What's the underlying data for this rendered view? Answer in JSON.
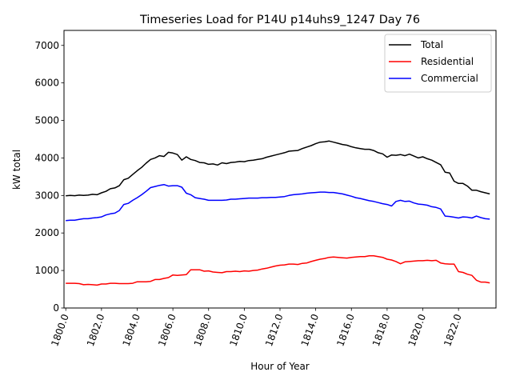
{
  "chart_data": {
    "type": "line",
    "title": "Timeseries Load for P14U p14uhs9_1247  Day 76",
    "xlabel": "Hour of Year",
    "ylabel": "kW total",
    "xlim": [
      1799.9,
      1824.1
    ],
    "ylim": [
      0,
      7400
    ],
    "xticks": [
      1800,
      1802,
      1804,
      1806,
      1808,
      1810,
      1812,
      1814,
      1816,
      1818,
      1820,
      1822
    ],
    "xtick_labels": [
      "1800.0",
      "1802.0",
      "1804.0",
      "1806.0",
      "1808.0",
      "1810.0",
      "1812.0",
      "1814.0",
      "1816.0",
      "1818.0",
      "1820.0",
      "1822.0"
    ],
    "yticks": [
      0,
      1000,
      2000,
      3000,
      4000,
      5000,
      6000,
      7000
    ],
    "ytick_labels": [
      "0",
      "1000",
      "2000",
      "3000",
      "4000",
      "5000",
      "6000",
      "7000"
    ],
    "grid": false,
    "legend_position": "top-right",
    "x": [
      1800.0,
      1800.25,
      1800.5,
      1800.75,
      1801.0,
      1801.25,
      1801.5,
      1801.75,
      1802.0,
      1802.25,
      1802.5,
      1802.75,
      1803.0,
      1803.25,
      1803.5,
      1803.75,
      1804.0,
      1804.25,
      1804.5,
      1804.75,
      1805.0,
      1805.25,
      1805.5,
      1805.75,
      1806.0,
      1806.25,
      1806.5,
      1806.75,
      1807.0,
      1807.25,
      1807.5,
      1807.75,
      1808.0,
      1808.25,
      1808.5,
      1808.75,
      1809.0,
      1809.25,
      1809.5,
      1809.75,
      1810.0,
      1810.25,
      1810.5,
      1810.75,
      1811.0,
      1811.25,
      1811.5,
      1811.75,
      1812.0,
      1812.25,
      1812.5,
      1812.75,
      1813.0,
      1813.25,
      1813.5,
      1813.75,
      1814.0,
      1814.25,
      1814.5,
      1814.75,
      1815.0,
      1815.25,
      1815.5,
      1815.75,
      1816.0,
      1816.25,
      1816.5,
      1816.75,
      1817.0,
      1817.25,
      1817.5,
      1817.75,
      1818.0,
      1818.25,
      1818.5,
      1818.75,
      1819.0,
      1819.25,
      1819.5,
      1819.75,
      1820.0,
      1820.25,
      1820.5,
      1820.75,
      1821.0,
      1821.25,
      1821.5,
      1821.75,
      1822.0,
      1822.25,
      1822.5,
      1822.75,
      1823.0,
      1823.25,
      1823.5,
      1823.75
    ],
    "series": [
      {
        "name": "Total",
        "color": "#000000",
        "values": [
          2990,
          3000,
          2995,
          3010,
          3000,
          3010,
          3030,
          3020,
          3070,
          3110,
          3180,
          3200,
          3260,
          3420,
          3460,
          3560,
          3660,
          3750,
          3860,
          3960,
          4000,
          4060,
          4040,
          4150,
          4130,
          4090,
          3940,
          4030,
          3960,
          3930,
          3880,
          3870,
          3830,
          3840,
          3810,
          3870,
          3850,
          3880,
          3890,
          3910,
          3900,
          3930,
          3940,
          3960,
          3980,
          4020,
          4050,
          4080,
          4110,
          4140,
          4180,
          4190,
          4200,
          4250,
          4290,
          4330,
          4380,
          4420,
          4430,
          4450,
          4420,
          4390,
          4360,
          4340,
          4300,
          4270,
          4250,
          4230,
          4230,
          4200,
          4140,
          4110,
          4020,
          4080,
          4070,
          4090,
          4060,
          4100,
          4050,
          4000,
          4030,
          3980,
          3940,
          3880,
          3820,
          3620,
          3600,
          3380,
          3320,
          3320,
          3250,
          3140,
          3140,
          3100,
          3070,
          3040
        ]
      },
      {
        "name": "Residential",
        "color": "#ff0000",
        "values": [
          660,
          660,
          660,
          650,
          620,
          630,
          620,
          610,
          640,
          640,
          660,
          660,
          650,
          650,
          650,
          660,
          700,
          700,
          700,
          710,
          760,
          760,
          790,
          810,
          880,
          870,
          880,
          890,
          1020,
          1020,
          1020,
          980,
          990,
          960,
          950,
          940,
          970,
          970,
          980,
          970,
          990,
          980,
          1000,
          1010,
          1040,
          1060,
          1090,
          1120,
          1140,
          1150,
          1170,
          1170,
          1160,
          1190,
          1200,
          1240,
          1270,
          1300,
          1320,
          1350,
          1360,
          1350,
          1340,
          1330,
          1350,
          1360,
          1370,
          1370,
          1390,
          1390,
          1370,
          1350,
          1300,
          1280,
          1240,
          1180,
          1230,
          1240,
          1250,
          1260,
          1260,
          1270,
          1260,
          1270,
          1200,
          1180,
          1170,
          1170,
          970,
          950,
          900,
          870,
          740,
          690,
          690,
          670
        ]
      },
      {
        "name": "Commercial",
        "color": "#0000ff",
        "values": [
          2330,
          2340,
          2340,
          2360,
          2380,
          2380,
          2400,
          2410,
          2430,
          2480,
          2510,
          2530,
          2600,
          2760,
          2790,
          2870,
          2940,
          3020,
          3110,
          3210,
          3240,
          3270,
          3290,
          3250,
          3260,
          3260,
          3220,
          3060,
          3020,
          2940,
          2920,
          2900,
          2870,
          2870,
          2870,
          2870,
          2880,
          2900,
          2900,
          2910,
          2920,
          2930,
          2930,
          2930,
          2940,
          2940,
          2950,
          2950,
          2960,
          2970,
          3000,
          3020,
          3030,
          3040,
          3060,
          3070,
          3080,
          3090,
          3090,
          3080,
          3080,
          3060,
          3040,
          3010,
          2980,
          2940,
          2920,
          2890,
          2860,
          2840,
          2810,
          2780,
          2760,
          2720,
          2840,
          2870,
          2840,
          2850,
          2800,
          2770,
          2760,
          2740,
          2700,
          2680,
          2640,
          2450,
          2440,
          2420,
          2400,
          2430,
          2420,
          2400,
          2450,
          2410,
          2380,
          2370
        ]
      }
    ]
  }
}
